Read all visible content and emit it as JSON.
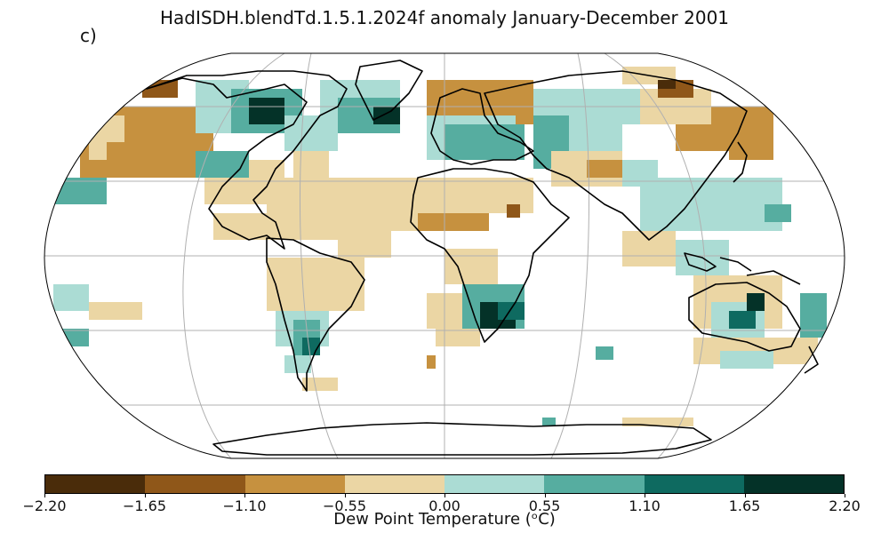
{
  "title": "HadISDH.blendTd.1.5.1.2024f anomaly January-December 2001",
  "panel_label": "c)",
  "colorbar": {
    "label": "Dew Point Temperature (ᵒC)",
    "ticks": [
      "−2.20",
      "−1.65",
      "−1.10",
      "−0.55",
      "0.00",
      "0.55",
      "1.10",
      "1.65",
      "2.20"
    ],
    "colors": [
      "#4a2c0a",
      "#8f5719",
      "#c6913f",
      "#ebd6a4",
      "#abdcd4",
      "#56ada0",
      "#0e6a60",
      "#043228"
    ]
  },
  "map": {
    "projection": "Robinson",
    "gridlines": true
  }
}
